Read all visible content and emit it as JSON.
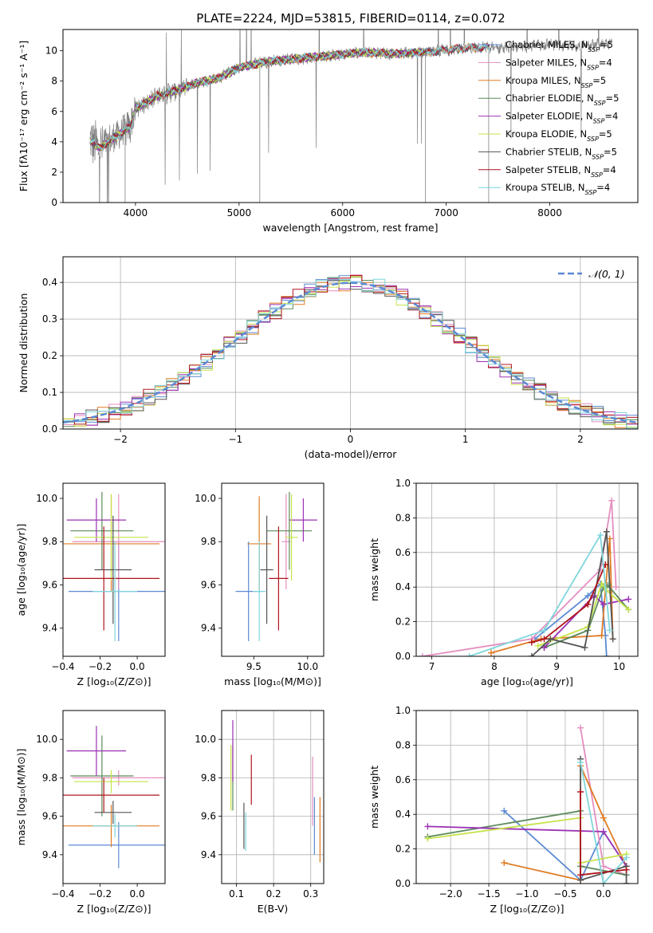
{
  "figure_title": "PLATE=2224, MJD=53815, FIBERID=0114, z=0.072",
  "colors": {
    "Chabrier MILES": "#5b8ad4",
    "Salpeter MILES": "#e58ebf",
    "Kroupa MILES": "#e07b23",
    "Chabrier ELODIE": "#5a8a5a",
    "Salpeter ELODIE": "#9b32b4",
    "Kroupa ELODIE": "#c6e34a",
    "Chabrier STELIB": "#555555",
    "Salpeter STELIB": "#b0151c",
    "Kroupa STELIB": "#7fd6dc"
  },
  "chart_data": [
    {
      "type": "line",
      "title": "PLATE=2224, MJD=53815, FIBERID=0114, z=0.072",
      "xlabel": "wavelength [Angstrom, rest frame]",
      "ylabel": "Flux [fλ10⁻¹⁷ erg cm⁻² s⁻¹ A⁻¹]",
      "xlim": [
        3300,
        8850
      ],
      "ylim": [
        0,
        11.4
      ],
      "xticks": [
        4000,
        5000,
        6000,
        7000,
        8000
      ],
      "yticks": [
        0,
        2,
        4,
        6,
        8,
        10
      ],
      "legend_position": "right",
      "data_series": {
        "name": "data",
        "color": "#808080",
        "x_range": [
          3560,
          8600
        ]
      },
      "continuum_x": [
        3560,
        3650,
        3700,
        3800,
        3950,
        4000,
        4200,
        4400,
        4600,
        4800,
        5000,
        5300,
        5600,
        5900,
        6200,
        6500,
        6800,
        7200,
        7600,
        8000,
        8300,
        8600
      ],
      "continuum_y": [
        4.1,
        3.6,
        3.8,
        4.3,
        5.0,
        6.2,
        7.0,
        7.4,
        7.9,
        8.2,
        8.9,
        9.3,
        9.5,
        9.7,
        9.9,
        9.8,
        9.9,
        10.2,
        10.2,
        10.4,
        10.3,
        10.5
      ],
      "series": [
        {
          "name": "Chabrier MILES",
          "nssp": 5
        },
        {
          "name": "Salpeter MILES",
          "nssp": 4
        },
        {
          "name": "Kroupa MILES",
          "nssp": 5
        },
        {
          "name": "Chabrier ELODIE",
          "nssp": 5
        },
        {
          "name": "Salpeter ELODIE",
          "nssp": 4
        },
        {
          "name": "Kroupa ELODIE",
          "nssp": 5
        },
        {
          "name": "Chabrier STELIB",
          "nssp": 5
        },
        {
          "name": "Salpeter STELIB",
          "nssp": 4
        },
        {
          "name": "Kroupa STELIB",
          "nssp": 4
        }
      ]
    },
    {
      "type": "step",
      "xlabel": "(data-model)/error",
      "ylabel": "Normed distribution",
      "xlim": [
        -2.5,
        2.5
      ],
      "ylim": [
        0,
        0.47
      ],
      "xticks": [
        -2,
        -1,
        0,
        1,
        2
      ],
      "yticks": [
        0.0,
        0.1,
        0.2,
        0.3,
        0.4
      ],
      "grid": true,
      "legend_position": "top-right",
      "reference_curve": {
        "name": "𝒩(0, 1)",
        "color": "#5b8ad4",
        "mean": 0,
        "sigma": 1
      },
      "bins": {
        "start": -2.5,
        "step": 0.1,
        "count": 50
      }
    },
    {
      "type": "errorbar",
      "xlabel": "Z [log₁₀(Z/Z⊙)]",
      "ylabel": "age  [log₁₀(age/yr)]",
      "xlim": [
        -0.4,
        0.15
      ],
      "ylim": [
        9.27,
        10.07
      ],
      "xticks": [
        -0.4,
        -0.2,
        0.0
      ],
      "yticks": [
        9.4,
        9.6,
        9.8,
        10.0
      ],
      "points": [
        {
          "series": "Chabrier MILES",
          "x": -0.1,
          "y": 9.57,
          "xerr": 0.27,
          "yerr": 0.23
        },
        {
          "series": "Salpeter MILES",
          "x": -0.1,
          "y": 9.8,
          "xerr": 0.25,
          "yerr": 0.22
        },
        {
          "series": "Kroupa MILES",
          "x": -0.14,
          "y": 9.79,
          "xerr": 0.26,
          "yerr": 0.22
        },
        {
          "series": "Chabrier ELODIE",
          "x": -0.19,
          "y": 9.85,
          "xerr": 0.17,
          "yerr": 0.18
        },
        {
          "series": "Salpeter ELODIE",
          "x": -0.22,
          "y": 9.9,
          "xerr": 0.16,
          "yerr": 0.1
        },
        {
          "series": "Kroupa ELODIE",
          "x": -0.14,
          "y": 9.82,
          "xerr": 0.2,
          "yerr": 0.2
        },
        {
          "series": "Chabrier STELIB",
          "x": -0.13,
          "y": 9.67,
          "xerr": 0.1,
          "yerr": 0.25
        },
        {
          "series": "Salpeter STELIB",
          "x": -0.18,
          "y": 9.63,
          "xerr": 0.3,
          "yerr": 0.24
        },
        {
          "series": "Kroupa STELIB",
          "x": -0.12,
          "y": 9.57,
          "xerr": 0.12,
          "yerr": 0.23
        }
      ]
    },
    {
      "type": "errorbar",
      "xlabel": "mass [log₁₀(M/M⊙)]",
      "ylabel": "",
      "xlim": [
        9.2,
        10.15
      ],
      "ylim": [
        9.27,
        10.07
      ],
      "xticks": [
        9.5,
        10.0
      ],
      "yticks": [
        9.4,
        9.6,
        9.8,
        10.0
      ],
      "points": [
        {
          "series": "Chabrier MILES",
          "x": 9.45,
          "y": 9.57,
          "xerr": 0.12,
          "yerr": 0.23
        },
        {
          "series": "Salpeter MILES",
          "x": 9.8,
          "y": 9.8,
          "xerr": 0.04,
          "yerr": 0.22
        },
        {
          "series": "Kroupa MILES",
          "x": 9.55,
          "y": 9.79,
          "xerr": 0.11,
          "yerr": 0.22
        },
        {
          "series": "Chabrier ELODIE",
          "x": 9.83,
          "y": 9.85,
          "xerr": 0.21,
          "yerr": 0.18
        },
        {
          "series": "Salpeter ELODIE",
          "x": 9.96,
          "y": 9.9,
          "xerr": 0.13,
          "yerr": 0.1
        },
        {
          "series": "Kroupa ELODIE",
          "x": 9.85,
          "y": 9.82,
          "xerr": 0.06,
          "yerr": 0.2
        },
        {
          "series": "Chabrier STELIB",
          "x": 9.62,
          "y": 9.67,
          "xerr": 0.06,
          "yerr": 0.25
        },
        {
          "series": "Salpeter STELIB",
          "x": 9.73,
          "y": 9.63,
          "xerr": 0.09,
          "yerr": 0.24
        },
        {
          "series": "Kroupa STELIB",
          "x": 9.55,
          "y": 9.57,
          "xerr": 0.06,
          "yerr": 0.23
        }
      ]
    },
    {
      "type": "line",
      "xlabel": "age  [log₁₀(age/yr)]",
      "ylabel": "mass weight",
      "xlim": [
        6.75,
        10.3
      ],
      "ylim": [
        0,
        1.0
      ],
      "xticks": [
        7,
        8,
        9,
        10
      ],
      "yticks": [
        0.0,
        0.2,
        0.4,
        0.6,
        0.8,
        1.0
      ],
      "grid": true,
      "series": [
        {
          "name": "Chabrier MILES",
          "x": [
            8.65,
            9.5,
            9.7,
            9.78,
            9.8
          ],
          "y": [
            0.1,
            0.35,
            0.42,
            0.12,
            0.0
          ]
        },
        {
          "name": "Salpeter MILES",
          "x": [
            6.85,
            8.6,
            9.7,
            9.88,
            9.95
          ],
          "y": [
            0.0,
            0.1,
            0.5,
            0.9,
            0.4
          ]
        },
        {
          "name": "Kroupa MILES",
          "x": [
            7.95,
            8.75,
            9.72,
            9.85,
            9.9
          ],
          "y": [
            0.02,
            0.1,
            0.12,
            0.68,
            0.1
          ]
        },
        {
          "name": "Chabrier ELODIE",
          "x": [
            8.8,
            9.5,
            9.75,
            9.82,
            10.15
          ],
          "y": [
            0.05,
            0.15,
            0.4,
            0.41,
            0.27
          ]
        },
        {
          "name": "Salpeter ELODIE",
          "x": [
            8.8,
            9.6,
            9.75,
            10.15
          ],
          "y": [
            0.05,
            0.35,
            0.3,
            0.33
          ]
        },
        {
          "name": "Kroupa ELODIE",
          "x": [
            8.7,
            9.5,
            9.72,
            9.8,
            10.15
          ],
          "y": [
            0.06,
            0.17,
            0.42,
            0.38,
            0.27
          ]
        },
        {
          "name": "Chabrier STELIB",
          "x": [
            8.6,
            8.9,
            9.45,
            9.8,
            9.9
          ],
          "y": [
            0.0,
            0.1,
            0.05,
            0.72,
            0.1
          ]
        },
        {
          "name": "Salpeter STELIB",
          "x": [
            8.6,
            8.8,
            9.5,
            9.78
          ],
          "y": [
            0.08,
            0.1,
            0.3,
            0.53
          ]
        },
        {
          "name": "Kroupa STELIB",
          "x": [
            7.6,
            8.8,
            9.7,
            9.85
          ],
          "y": [
            0.0,
            0.15,
            0.7,
            0.15
          ]
        }
      ]
    },
    {
      "type": "errorbar",
      "xlabel": "Z [log₁₀(Z/Z⊙)]",
      "ylabel": "mass [log₁₀(M/M⊙)]",
      "xlim": [
        -0.4,
        0.15
      ],
      "ylim": [
        9.25,
        10.15
      ],
      "xticks": [
        -0.4,
        -0.2,
        0.0
      ],
      "yticks": [
        9.4,
        9.6,
        9.8,
        10.0
      ],
      "points": [
        {
          "series": "Chabrier MILES",
          "x": -0.1,
          "y": 9.45,
          "xerr": 0.27,
          "yerr": 0.12
        },
        {
          "series": "Salpeter MILES",
          "x": -0.1,
          "y": 9.8,
          "xerr": 0.25,
          "yerr": 0.04
        },
        {
          "series": "Kroupa MILES",
          "x": -0.14,
          "y": 9.55,
          "xerr": 0.26,
          "yerr": 0.11
        },
        {
          "series": "Chabrier ELODIE",
          "x": -0.19,
          "y": 9.81,
          "xerr": 0.17,
          "yerr": 0.21
        },
        {
          "series": "Salpeter ELODIE",
          "x": -0.22,
          "y": 9.94,
          "xerr": 0.16,
          "yerr": 0.13
        },
        {
          "series": "Kroupa ELODIE",
          "x": -0.14,
          "y": 9.78,
          "xerr": 0.2,
          "yerr": 0.06
        },
        {
          "series": "Chabrier STELIB",
          "x": -0.13,
          "y": 9.62,
          "xerr": 0.1,
          "yerr": 0.06
        },
        {
          "series": "Salpeter STELIB",
          "x": -0.18,
          "y": 9.71,
          "xerr": 0.3,
          "yerr": 0.09
        },
        {
          "series": "Kroupa STELIB",
          "x": -0.12,
          "y": 9.55,
          "xerr": 0.12,
          "yerr": 0.06
        }
      ]
    },
    {
      "type": "errorbar",
      "xlabel": "E(B-V)",
      "ylabel": "",
      "xlim": [
        0.06,
        0.335
      ],
      "ylim": [
        9.25,
        10.15
      ],
      "xticks": [
        0.1,
        0.2,
        0.3
      ],
      "yticks": [
        9.4,
        9.6,
        9.8,
        10.0
      ],
      "grid": true,
      "points": [
        {
          "series": "Chabrier MILES",
          "x": 0.31,
          "y": 9.55,
          "xerr": 0.0,
          "yerr": 0.15
        },
        {
          "series": "Salpeter MILES",
          "x": 0.305,
          "y": 9.73,
          "xerr": 0.0,
          "yerr": 0.18
        },
        {
          "series": "Kroupa MILES",
          "x": 0.325,
          "y": 9.53,
          "xerr": 0.0,
          "yerr": 0.17
        },
        {
          "series": "Chabrier ELODIE",
          "x": 0.09,
          "y": 9.8,
          "xerr": 0.0,
          "yerr": 0.17
        },
        {
          "series": "Salpeter ELODIE",
          "x": 0.09,
          "y": 9.94,
          "xerr": 0.0,
          "yerr": 0.16
        },
        {
          "series": "Kroupa ELODIE",
          "x": 0.085,
          "y": 9.8,
          "xerr": 0.0,
          "yerr": 0.17
        },
        {
          "series": "Chabrier STELIB",
          "x": 0.12,
          "y": 9.55,
          "xerr": 0.0,
          "yerr": 0.12
        },
        {
          "series": "Salpeter STELIB",
          "x": 0.14,
          "y": 9.79,
          "xerr": 0.0,
          "yerr": 0.13
        },
        {
          "series": "Kroupa STELIB",
          "x": 0.125,
          "y": 9.52,
          "xerr": 0.0,
          "yerr": 0.1
        }
      ]
    },
    {
      "type": "line",
      "xlabel": "Z [log₁₀(Z/Z⊙)]",
      "ylabel": "mass weight",
      "xlim": [
        -2.45,
        0.45
      ],
      "ylim": [
        0,
        1.0
      ],
      "xticks": [
        -2.0,
        -1.5,
        -1.0,
        -0.5,
        0.0
      ],
      "yticks": [
        0.0,
        0.2,
        0.4,
        0.6,
        0.8,
        1.0
      ],
      "grid": true,
      "series": [
        {
          "name": "Chabrier MILES",
          "x": [
            -1.3,
            -0.3,
            0.0,
            0.3
          ],
          "y": [
            0.42,
            0.02,
            0.3,
            0.1
          ]
        },
        {
          "name": "Salpeter MILES",
          "x": [
            -0.3,
            0.0,
            0.3
          ],
          "y": [
            0.9,
            0.1,
            0.05
          ]
        },
        {
          "name": "Kroupa MILES",
          "x": [
            -1.3,
            -0.3,
            -0.3,
            0.0,
            0.3
          ],
          "y": [
            0.12,
            0.02,
            0.68,
            0.38,
            0.1
          ]
        },
        {
          "name": "Chabrier ELODIE",
          "x": [
            -2.3,
            -0.3,
            -0.3,
            0.3
          ],
          "y": [
            0.27,
            0.42,
            0.1,
            0.05
          ]
        },
        {
          "name": "Salpeter ELODIE",
          "x": [
            -2.3,
            0.0,
            0.3
          ],
          "y": [
            0.33,
            0.3,
            0.1
          ]
        },
        {
          "name": "Kroupa ELODIE",
          "x": [
            -2.3,
            -0.3,
            -0.3,
            0.3
          ],
          "y": [
            0.26,
            0.38,
            0.12,
            0.17
          ]
        },
        {
          "name": "Chabrier STELIB",
          "x": [
            -0.3,
            -0.3,
            0.3,
            0.3
          ],
          "y": [
            0.72,
            0.02,
            0.1,
            0.0
          ]
        },
        {
          "name": "Salpeter STELIB",
          "x": [
            -0.3,
            -0.3,
            0.3
          ],
          "y": [
            0.53,
            0.05,
            0.08
          ]
        },
        {
          "name": "Kroupa STELIB",
          "x": [
            -0.3,
            0.0,
            0.3
          ],
          "y": [
            0.7,
            0.0,
            0.15
          ]
        }
      ]
    }
  ]
}
